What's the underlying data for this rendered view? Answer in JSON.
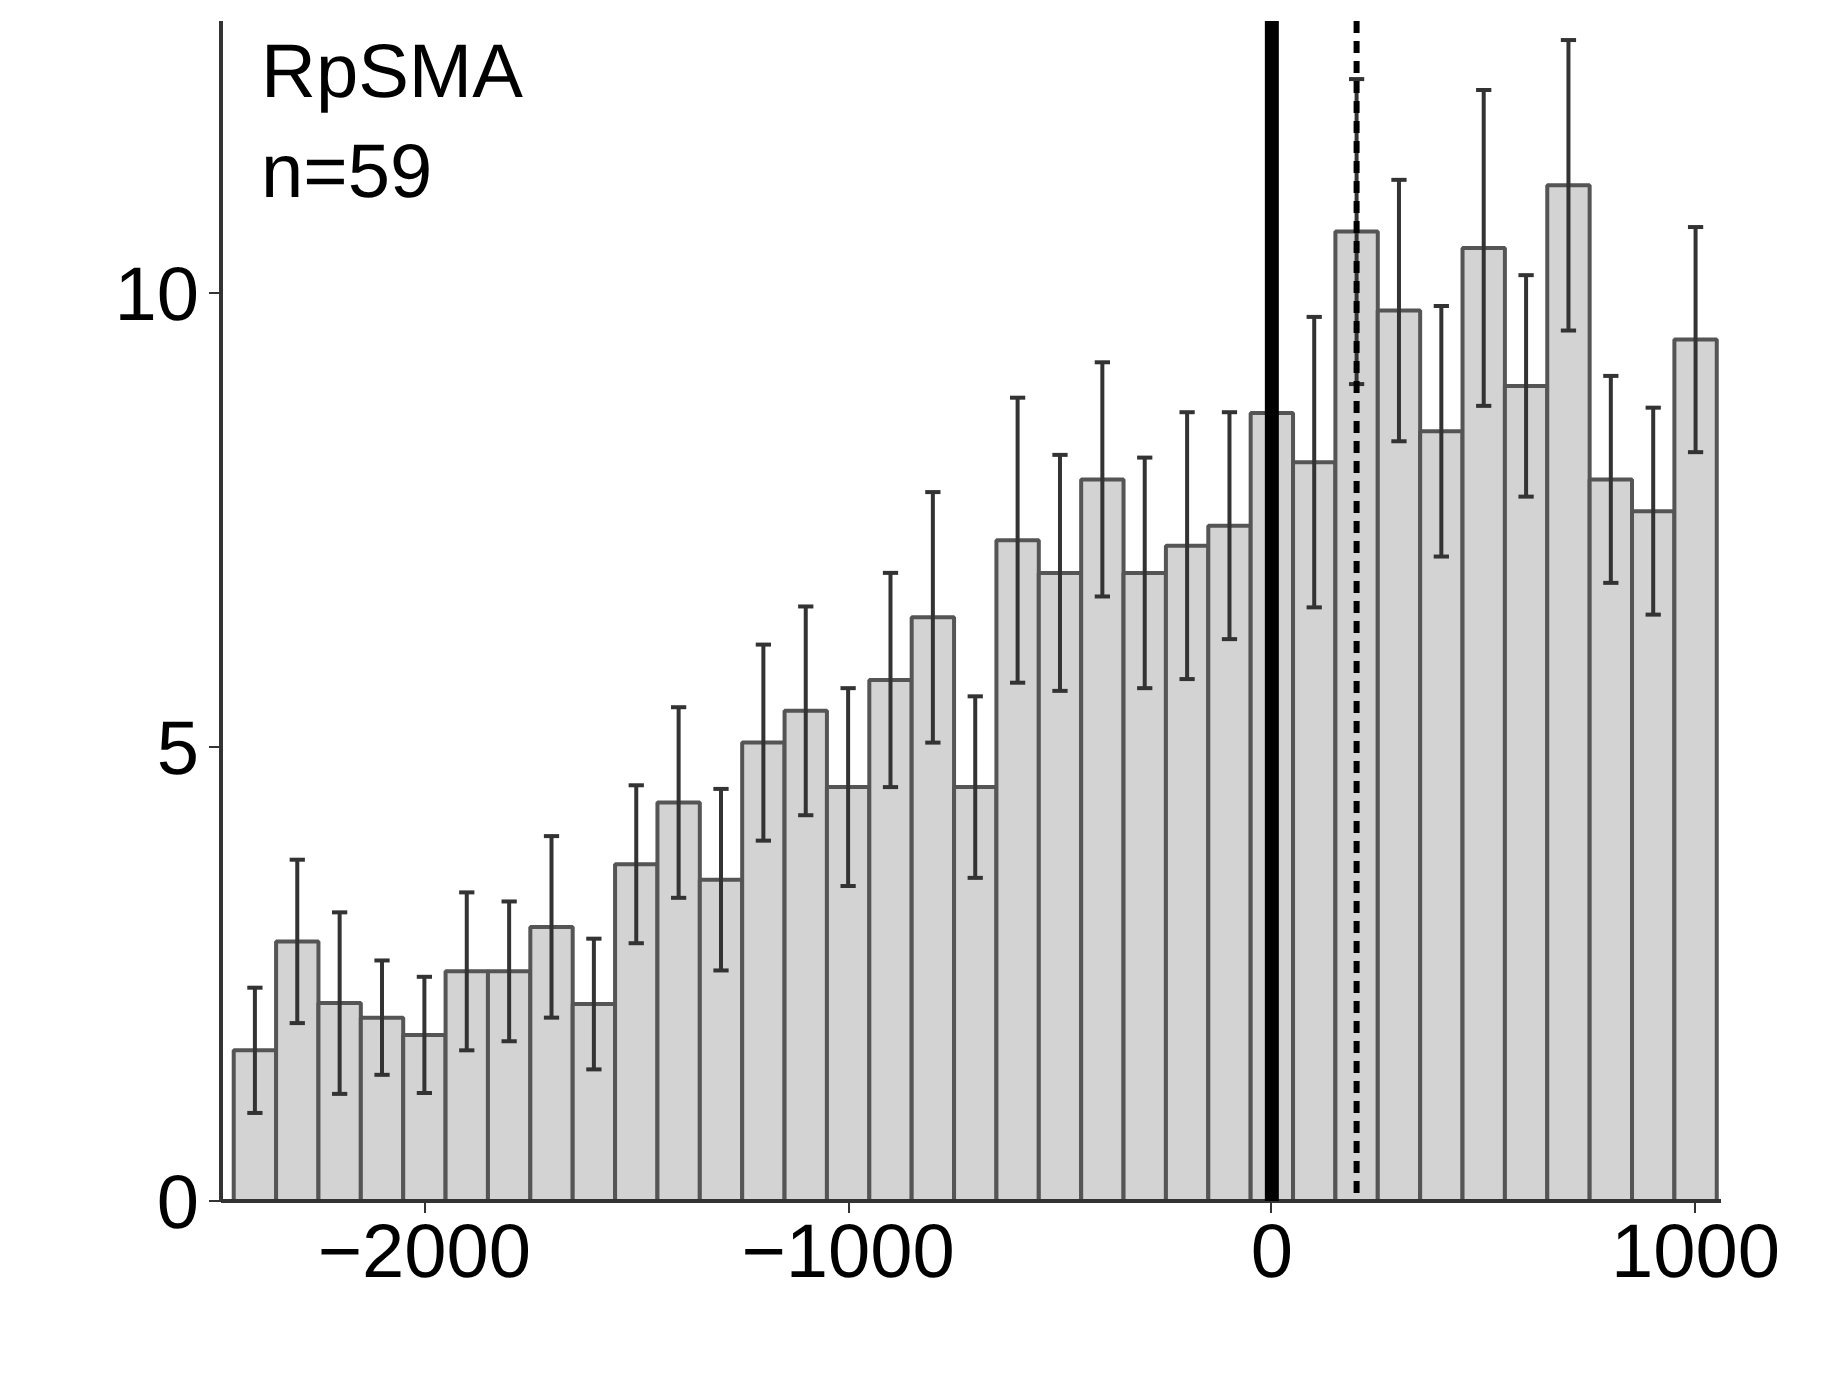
{
  "chart_data": {
    "type": "histogram",
    "title": "RpSMA",
    "subtitle": "n=59",
    "bins": [
      -2450,
      -2350,
      -2250,
      -2150,
      -2050,
      -1950,
      -1850,
      -1750,
      -1650,
      -1550,
      -1450,
      -1350,
      -1250,
      -1150,
      -1050,
      -950,
      -850,
      -750,
      -650,
      -550,
      -450,
      -350,
      -250,
      -150,
      -50,
      50,
      150,
      250,
      350,
      450,
      550,
      650,
      750,
      850,
      950,
      1050
    ],
    "values": [
      1.66,
      2.86,
      2.18,
      2.02,
      1.83,
      2.53,
      2.53,
      3.02,
      2.17,
      3.71,
      4.39,
      3.54,
      5.05,
      5.4,
      4.56,
      5.74,
      6.43,
      4.56,
      7.28,
      6.92,
      7.95,
      6.92,
      7.22,
      7.44,
      8.68,
      8.14,
      10.68,
      9.81,
      8.48,
      10.5,
      8.98,
      11.19,
      7.95,
      7.6,
      9.49
    ],
    "errors": [
      0.69,
      0.9,
      1.0,
      0.63,
      0.64,
      0.87,
      0.77,
      1.0,
      0.72,
      0.87,
      1.05,
      1.0,
      1.08,
      1.15,
      1.09,
      1.18,
      1.38,
      1.0,
      1.57,
      1.3,
      1.29,
      1.27,
      1.47,
      1.25,
      null,
      1.6,
      1.68,
      1.44,
      1.38,
      1.74,
      1.22,
      1.6,
      1.14,
      1.14,
      1.24
    ],
    "color": "#d3d3d3",
    "xlim": [
      -2480,
      1060
    ],
    "xticks": [
      -2000,
      -1000,
      0,
      1000
    ],
    "ylim": [
      0,
      13
    ],
    "yticks": [
      0,
      5,
      10
    ],
    "ref_lines": [
      {
        "axis": "x",
        "value": 0,
        "color": "#000000",
        "line_style": "solid"
      },
      {
        "axis": "x",
        "value": 200,
        "color": "#000000",
        "line_style": "dashed"
      }
    ],
    "grid": false
  }
}
